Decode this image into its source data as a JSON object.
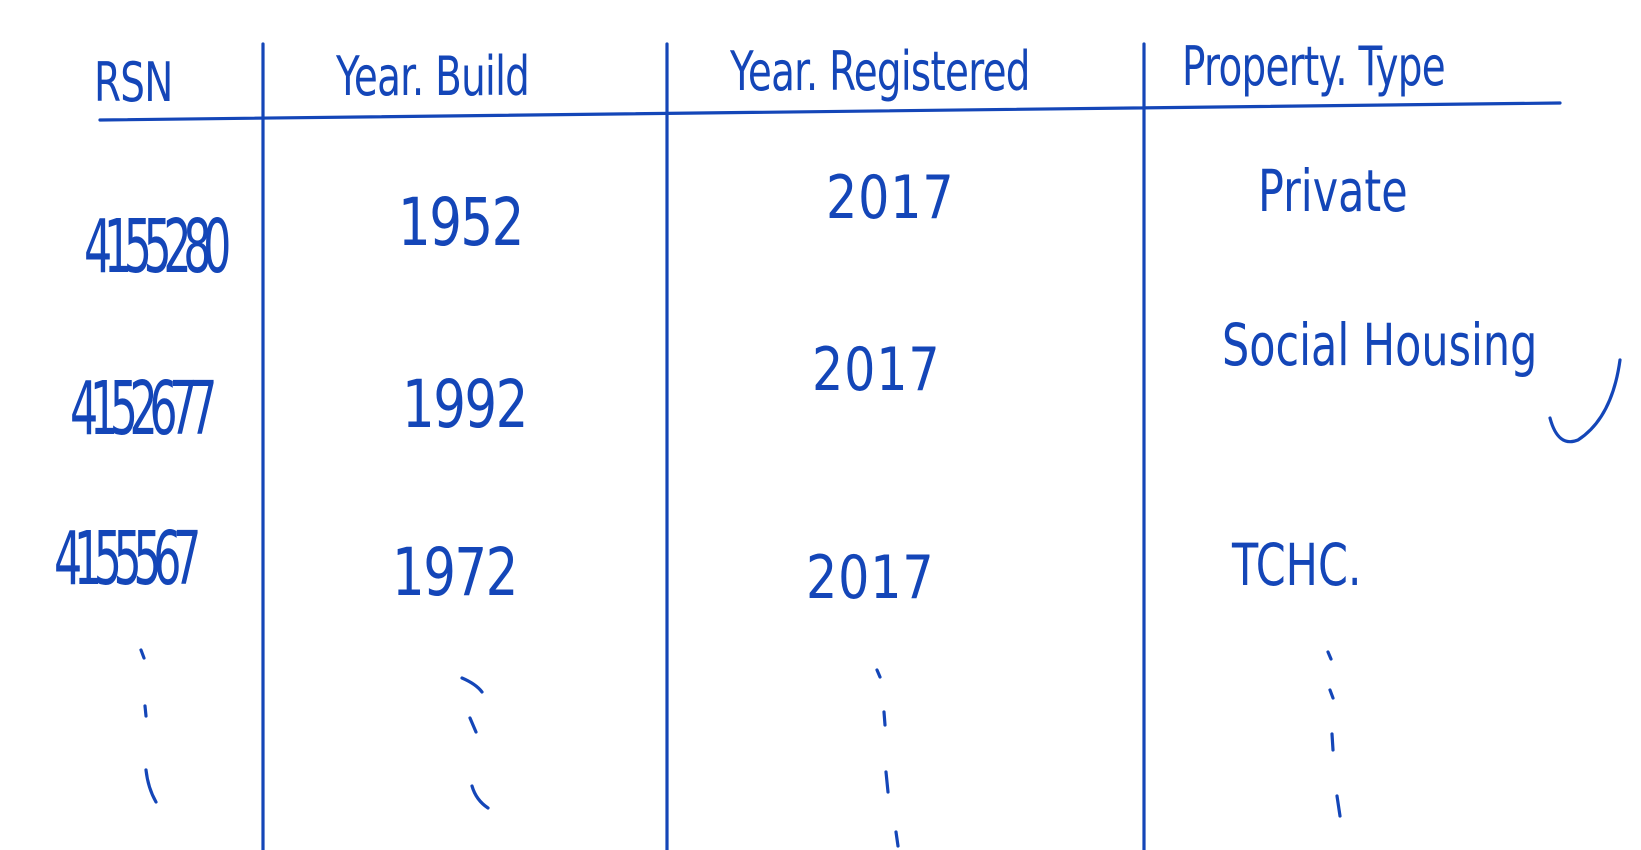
{
  "table": {
    "headers": {
      "rsn": "RSN",
      "year_build": "Year. Build",
      "year_registered": "Year. Registered",
      "property_type": "Property. Type"
    },
    "rows": [
      {
        "rsn": "4155280",
        "year_build": "1952",
        "year_registered": "2017",
        "property_type": "Private"
      },
      {
        "rsn": "4152677",
        "year_build": "1992",
        "year_registered": "2017",
        "property_type": "Social Housing"
      },
      {
        "rsn": "4155567",
        "year_build": "1972",
        "year_registered": "2017",
        "property_type": "TCHC."
      }
    ]
  },
  "colors": {
    "ink": "#1446b8",
    "background": "#ffffff"
  }
}
